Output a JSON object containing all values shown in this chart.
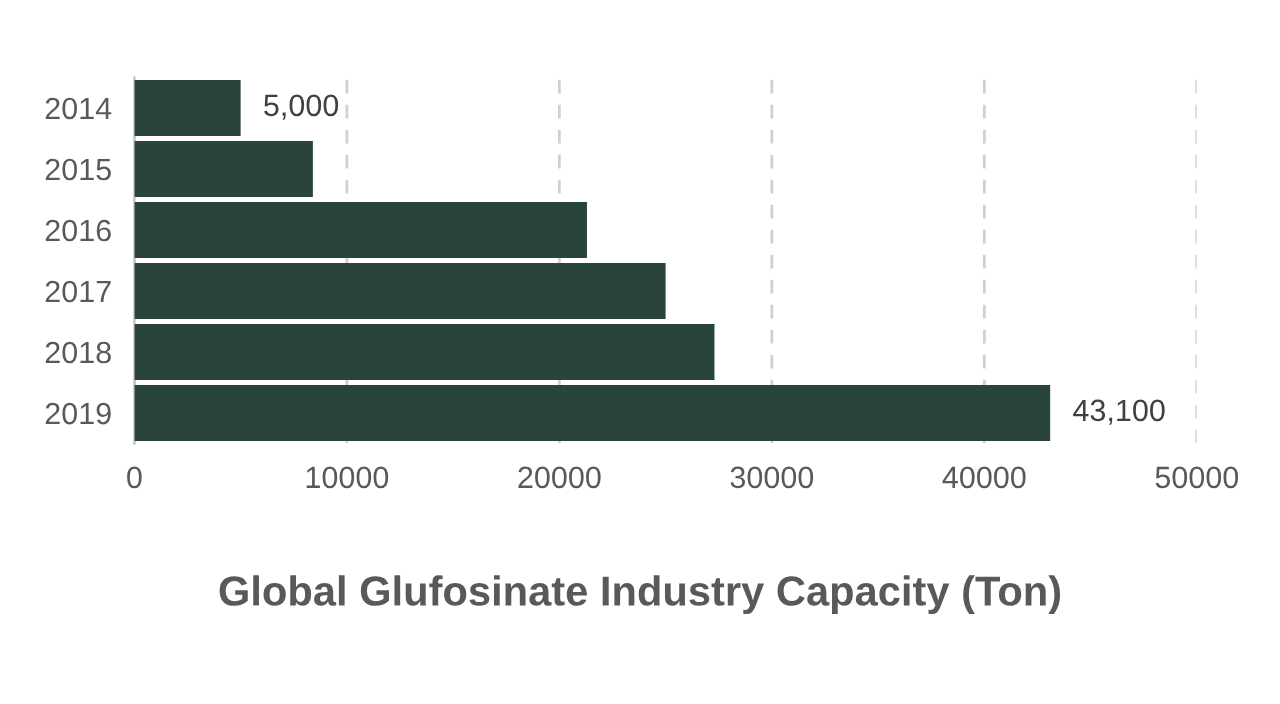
{
  "chart_data": {
    "type": "bar",
    "orientation": "horizontal",
    "title": "Global Glufosinate Industry Capacity (Ton)",
    "categories": [
      "2014",
      "2015",
      "2016",
      "2017",
      "2018",
      "2019"
    ],
    "values": [
      5000,
      8400,
      21300,
      25000,
      27300,
      43100
    ],
    "value_labels": [
      "5,000",
      null,
      null,
      null,
      null,
      "43,100"
    ],
    "color": "#29453a",
    "xlim": [
      0,
      50000
    ],
    "xticks": [
      0,
      10000,
      20000,
      30000,
      40000,
      50000
    ],
    "grid": "x",
    "line_style": "dashed"
  }
}
